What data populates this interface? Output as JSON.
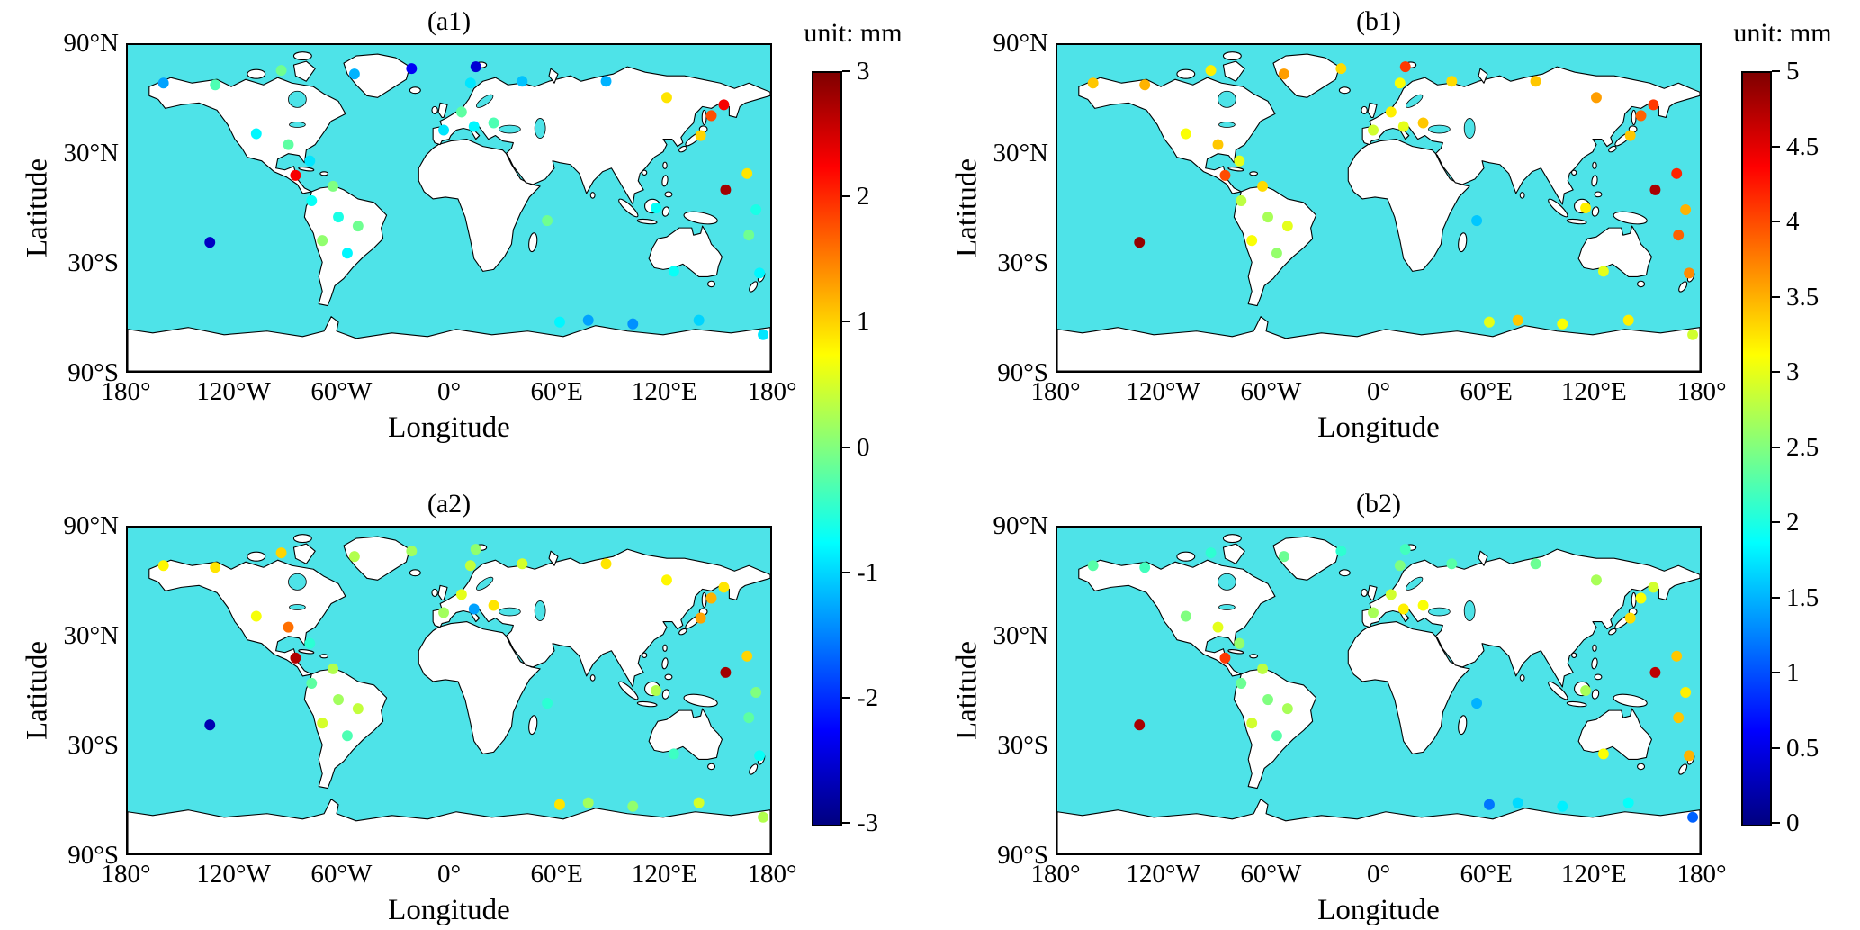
{
  "chart_data": {
    "type": "scatter",
    "subtype": "geographic-station-maps",
    "projection": "equirectangular",
    "colormap": "jet",
    "colors": {
      "ocean": "#4ee3e8",
      "land": "#ffffff",
      "coastline": "#000000",
      "text": "#000000",
      "frame": "#000000"
    },
    "axes": {
      "xlabel": "Longitude",
      "ylabel": "Latitude",
      "xlim": [
        -180,
        180
      ],
      "ylim": [
        -90,
        90
      ],
      "xtick_labels": [
        "180°",
        "120°W",
        "60°W",
        "0°",
        "60°E",
        "120°E",
        "180°"
      ],
      "xtick_values": [
        -180,
        -120,
        -60,
        0,
        60,
        120,
        180
      ],
      "ytick_labels": [
        "90°N",
        "30°N",
        "30°S",
        "90°S"
      ],
      "ytick_values": [
        90,
        30,
        -30,
        -90
      ],
      "grid": false
    },
    "colorbars": [
      {
        "id": "left",
        "unit_label": "unit: mm",
        "min": -3,
        "max": 3,
        "tick_labels": [
          "3",
          "2",
          "1",
          "0",
          "-1",
          "-2",
          "-3"
        ],
        "tick_values": [
          3,
          2,
          1,
          0,
          -1,
          -2,
          -3
        ],
        "applies_to": [
          "(a1)",
          "(a2)"
        ],
        "position": "between-columns"
      },
      {
        "id": "right",
        "unit_label": "unit: mm",
        "min": 0,
        "max": 5,
        "tick_labels": [
          "5",
          "4.5",
          "4",
          "3.5",
          "3",
          "2.5",
          "2",
          "1.5",
          "1",
          "0.5",
          "0"
        ],
        "tick_values": [
          5,
          4.5,
          4,
          3.5,
          3,
          2.5,
          2,
          1.5,
          1,
          0.5,
          0
        ],
        "applies_to": [
          "(b1)",
          "(b2)"
        ],
        "position": "right-edge"
      }
    ],
    "stations": [
      [
        -160,
        69
      ],
      [
        -131,
        68
      ],
      [
        -94,
        76
      ],
      [
        -53,
        74
      ],
      [
        -21,
        77
      ],
      [
        15,
        78
      ],
      [
        12,
        69
      ],
      [
        41,
        70
      ],
      [
        88,
        70
      ],
      [
        122,
        61
      ],
      [
        147,
        51
      ],
      [
        154,
        57
      ],
      [
        141,
        40
      ],
      [
        167,
        19
      ],
      [
        155,
        10
      ],
      [
        7,
        53
      ],
      [
        14,
        45
      ],
      [
        -3,
        43
      ],
      [
        25,
        47
      ],
      [
        -108,
        41
      ],
      [
        -90,
        35
      ],
      [
        -78,
        26
      ],
      [
        -86,
        18
      ],
      [
        -65,
        12
      ],
      [
        -77,
        4
      ],
      [
        -62,
        -5
      ],
      [
        -51,
        -10
      ],
      [
        -71,
        -18
      ],
      [
        -57,
        -25
      ],
      [
        -134,
        -19
      ],
      [
        55,
        -7
      ],
      [
        116,
        0
      ],
      [
        172,
        -1
      ],
      [
        168,
        -15
      ],
      [
        174,
        -36
      ],
      [
        126,
        -35
      ],
      [
        62,
        -63
      ],
      [
        78,
        -62
      ],
      [
        103,
        -64
      ],
      [
        140,
        -62
      ],
      [
        176,
        -70
      ]
    ],
    "panels": [
      {
        "title": "(a1)",
        "grid": [
          0,
          0
        ],
        "colorbar": "left",
        "values": [
          -1.3,
          -0.3,
          -0.1,
          -1.2,
          -2.3,
          -2.5,
          -0.9,
          -1.1,
          -1.2,
          0.9,
          1.8,
          2.3,
          1.0,
          0.9,
          2.8,
          -0.2,
          -0.8,
          -0.9,
          -0.3,
          -0.8,
          -0.2,
          -0.9,
          2.3,
          0.0,
          -0.7,
          -0.6,
          -0.1,
          0.1,
          -0.8,
          -2.6,
          -0.1,
          -0.7,
          -0.6,
          -0.1,
          -0.8,
          -0.7,
          -0.8,
          -1.3,
          -1.4,
          -1.0,
          -0.9
        ]
      },
      {
        "title": "(b1)",
        "grid": [
          0,
          1
        ],
        "colorbar": "right",
        "values": [
          3.4,
          3.5,
          3.2,
          3.6,
          3.3,
          4.1,
          3.1,
          3.3,
          3.4,
          3.6,
          3.9,
          4.1,
          3.4,
          4.2,
          4.8,
          3.2,
          3.0,
          2.9,
          3.4,
          3.1,
          3.4,
          3.0,
          4.0,
          3.3,
          2.8,
          2.7,
          3.0,
          3.1,
          2.6,
          4.9,
          1.6,
          3.2,
          3.5,
          3.9,
          3.7,
          3.0,
          3.0,
          3.4,
          3.1,
          3.2,
          2.9
        ]
      },
      {
        "title": "(a2)",
        "grid": [
          1,
          0
        ],
        "colorbar": "left",
        "values": [
          0.8,
          0.9,
          1.0,
          0.3,
          0.2,
          0.1,
          0.4,
          0.5,
          0.9,
          0.8,
          1.2,
          0.9,
          1.3,
          1.0,
          2.8,
          0.6,
          -1.3,
          0.2,
          0.9,
          0.7,
          1.6,
          -0.5,
          2.7,
          0.3,
          -0.2,
          0.2,
          0.4,
          0.5,
          -0.3,
          -2.7,
          -0.5,
          0.3,
          0.0,
          -0.2,
          -0.7,
          -0.4,
          0.9,
          0.2,
          0.1,
          0.5,
          0.3
        ]
      },
      {
        "title": "(b2)",
        "grid": [
          1,
          1
        ],
        "colorbar": "right",
        "values": [
          2.3,
          2.2,
          2.1,
          2.4,
          2.1,
          2.2,
          2.5,
          2.3,
          2.4,
          2.7,
          3.1,
          2.9,
          3.3,
          3.4,
          4.7,
          2.9,
          3.2,
          2.7,
          3.1,
          2.5,
          3.0,
          2.6,
          4.1,
          2.8,
          2.4,
          2.5,
          2.7,
          2.9,
          2.3,
          4.8,
          1.5,
          2.7,
          3.2,
          3.4,
          3.5,
          3.1,
          1.2,
          1.7,
          1.8,
          1.9,
          1.1
        ]
      }
    ]
  }
}
